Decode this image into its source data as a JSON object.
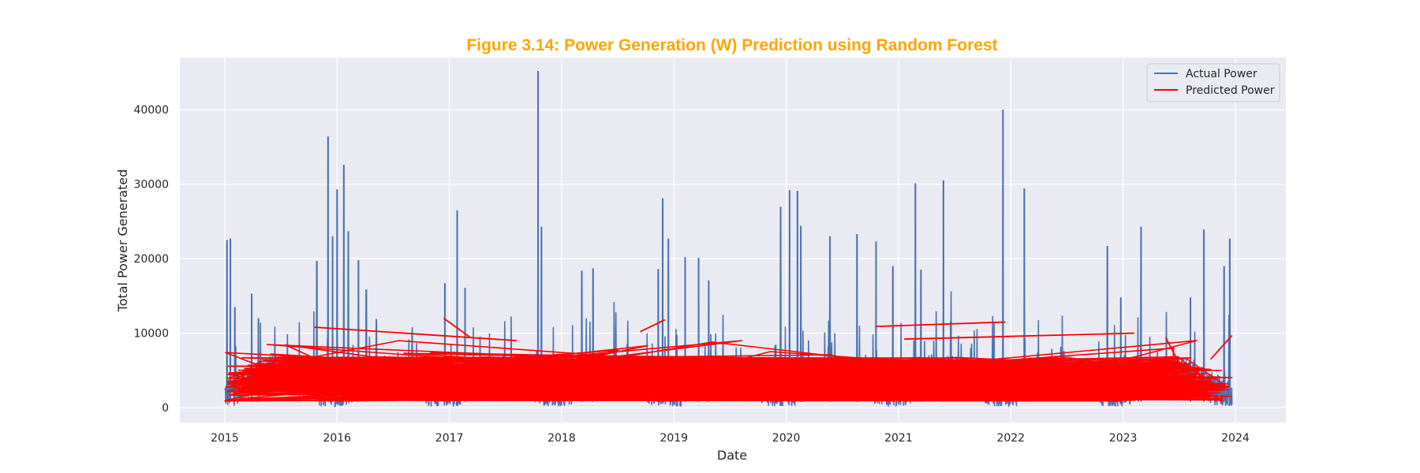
{
  "chart_data": {
    "type": "line",
    "title": "Figure 3.14: Power Generation (W) Prediction using Random Forest",
    "xlabel": "Date",
    "ylabel": "Total Power Generated",
    "x_range": [
      2014.6,
      2024.45
    ],
    "ylim": [
      -2000,
      47000
    ],
    "x_ticks": [
      2015,
      2016,
      2017,
      2018,
      2019,
      2020,
      2021,
      2022,
      2023,
      2024
    ],
    "x_tick_labels": [
      "2015",
      "2016",
      "2017",
      "2018",
      "2019",
      "2020",
      "2021",
      "2022",
      "2023",
      "2024"
    ],
    "y_ticks": [
      0,
      10000,
      20000,
      30000,
      40000
    ],
    "y_tick_labels": [
      "0",
      "10000",
      "20000",
      "30000",
      "40000"
    ],
    "grid": true,
    "legend_position": "top-right",
    "colors": {
      "title": "#FFA500",
      "plot_background": "#EAEAF2",
      "grid": "#FFFFFF",
      "actual": "#4C72B0",
      "predicted": "#FF0000"
    },
    "series": [
      {
        "name": "Actual Power",
        "kind": "daily series, range 2015-01 to 2023-12, baseline 1000-8000 with spikes",
        "x_start": 2015.0,
        "x_end": 2023.97,
        "spikes": [
          [
            2015.02,
            22500
          ],
          [
            2015.05,
            22700
          ],
          [
            2015.09,
            13500
          ],
          [
            2015.24,
            15300
          ],
          [
            2015.3,
            12000
          ],
          [
            2015.82,
            19600
          ],
          [
            2015.92,
            36400
          ],
          [
            2015.96,
            23000
          ],
          [
            2016.0,
            29300
          ],
          [
            2016.06,
            32600
          ],
          [
            2016.1,
            23600
          ],
          [
            2016.19,
            19800
          ],
          [
            2016.26,
            15800
          ],
          [
            2016.96,
            16700
          ],
          [
            2017.07,
            26500
          ],
          [
            2017.14,
            16100
          ],
          [
            2017.79,
            45200
          ],
          [
            2017.82,
            24300
          ],
          [
            2018.18,
            18300
          ],
          [
            2018.28,
            18700
          ],
          [
            2018.86,
            18600
          ],
          [
            2018.9,
            28100
          ],
          [
            2018.95,
            22700
          ],
          [
            2019.1,
            20200
          ],
          [
            2019.22,
            20100
          ],
          [
            2019.31,
            17100
          ],
          [
            2019.95,
            26900
          ],
          [
            2020.03,
            29200
          ],
          [
            2020.1,
            29100
          ],
          [
            2020.13,
            24400
          ],
          [
            2020.39,
            23000
          ],
          [
            2020.63,
            23300
          ],
          [
            2020.8,
            22300
          ],
          [
            2020.95,
            19000
          ],
          [
            2021.15,
            30100
          ],
          [
            2021.2,
            18500
          ],
          [
            2021.4,
            30500
          ],
          [
            2021.93,
            40000
          ],
          [
            2022.12,
            29400
          ],
          [
            2022.86,
            21700
          ],
          [
            2022.98,
            14800
          ],
          [
            2023.16,
            24300
          ],
          [
            2023.6,
            14800
          ],
          [
            2023.72,
            23900
          ],
          [
            2023.9,
            19000
          ],
          [
            2023.95,
            22700
          ]
        ]
      },
      {
        "name": "Predicted Power",
        "kind": "unsorted prediction line, range 1000-12000",
        "x_start": 2015.0,
        "x_end": 2023.97,
        "peak_segments": [
          [
            2016.95,
            12000,
            2017.18,
            9500
          ],
          [
            2018.92,
            11800,
            2018.7,
            10200
          ],
          [
            2015.8,
            10800,
            2017.6,
            9000
          ],
          [
            2020.8,
            10900,
            2021.95,
            11500
          ],
          [
            2021.05,
            9200,
            2023.1,
            10000
          ],
          [
            2023.38,
            9400,
            2023.55,
            4500
          ],
          [
            2023.78,
            6500,
            2023.97,
            9700
          ]
        ]
      }
    ]
  }
}
